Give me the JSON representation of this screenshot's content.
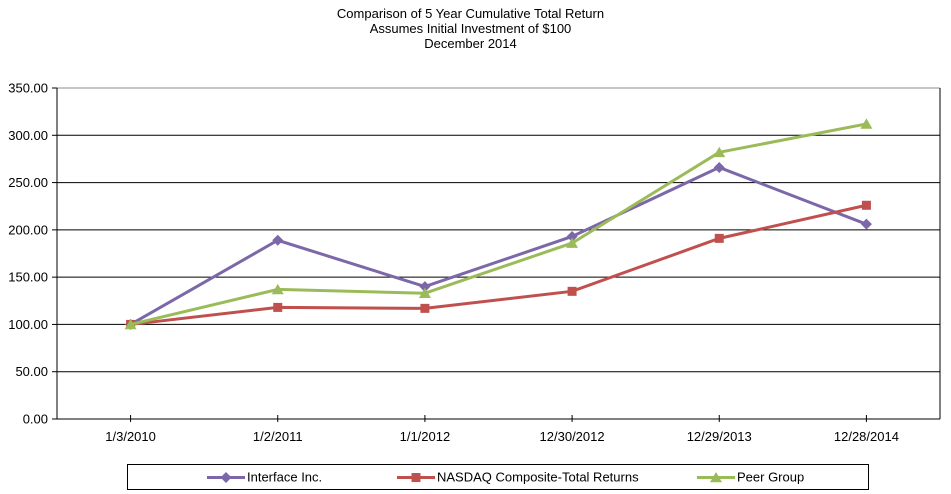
{
  "title": {
    "line1": "Comparison of 5 Year Cumulative Total Return",
    "line2": "Assumes Initial Investment of $100",
    "line3": "December 2014"
  },
  "chart_data": {
    "type": "line",
    "categories": [
      "1/3/2010",
      "1/2/2011",
      "1/1/2012",
      "12/30/2012",
      "12/29/2013",
      "12/28/2014"
    ],
    "series": [
      {
        "name": "Interface Inc.",
        "marker": "diamond",
        "color": "#7C67A8",
        "values": [
          100,
          189,
          140,
          193,
          266,
          206
        ]
      },
      {
        "name": "NASDAQ Composite-Total Returns",
        "marker": "square",
        "color": "#C0504D",
        "values": [
          100,
          118,
          117,
          135,
          191,
          226
        ]
      },
      {
        "name": "Peer Group",
        "marker": "triangle",
        "color": "#9BBB59",
        "values": [
          100,
          137,
          133,
          186,
          282,
          312
        ]
      }
    ],
    "ylim": [
      0,
      350
    ],
    "ytick_step": 50,
    "ytick_labels": [
      "0.00",
      "50.00",
      "100.00",
      "150.00",
      "200.00",
      "250.00",
      "300.00",
      "350.00"
    ],
    "grid": "horizontal",
    "legend_position": "bottom",
    "axis_color": "#000000",
    "top_gridline_color": "#8C8C8C",
    "plot_background": "#FFFFFF"
  }
}
